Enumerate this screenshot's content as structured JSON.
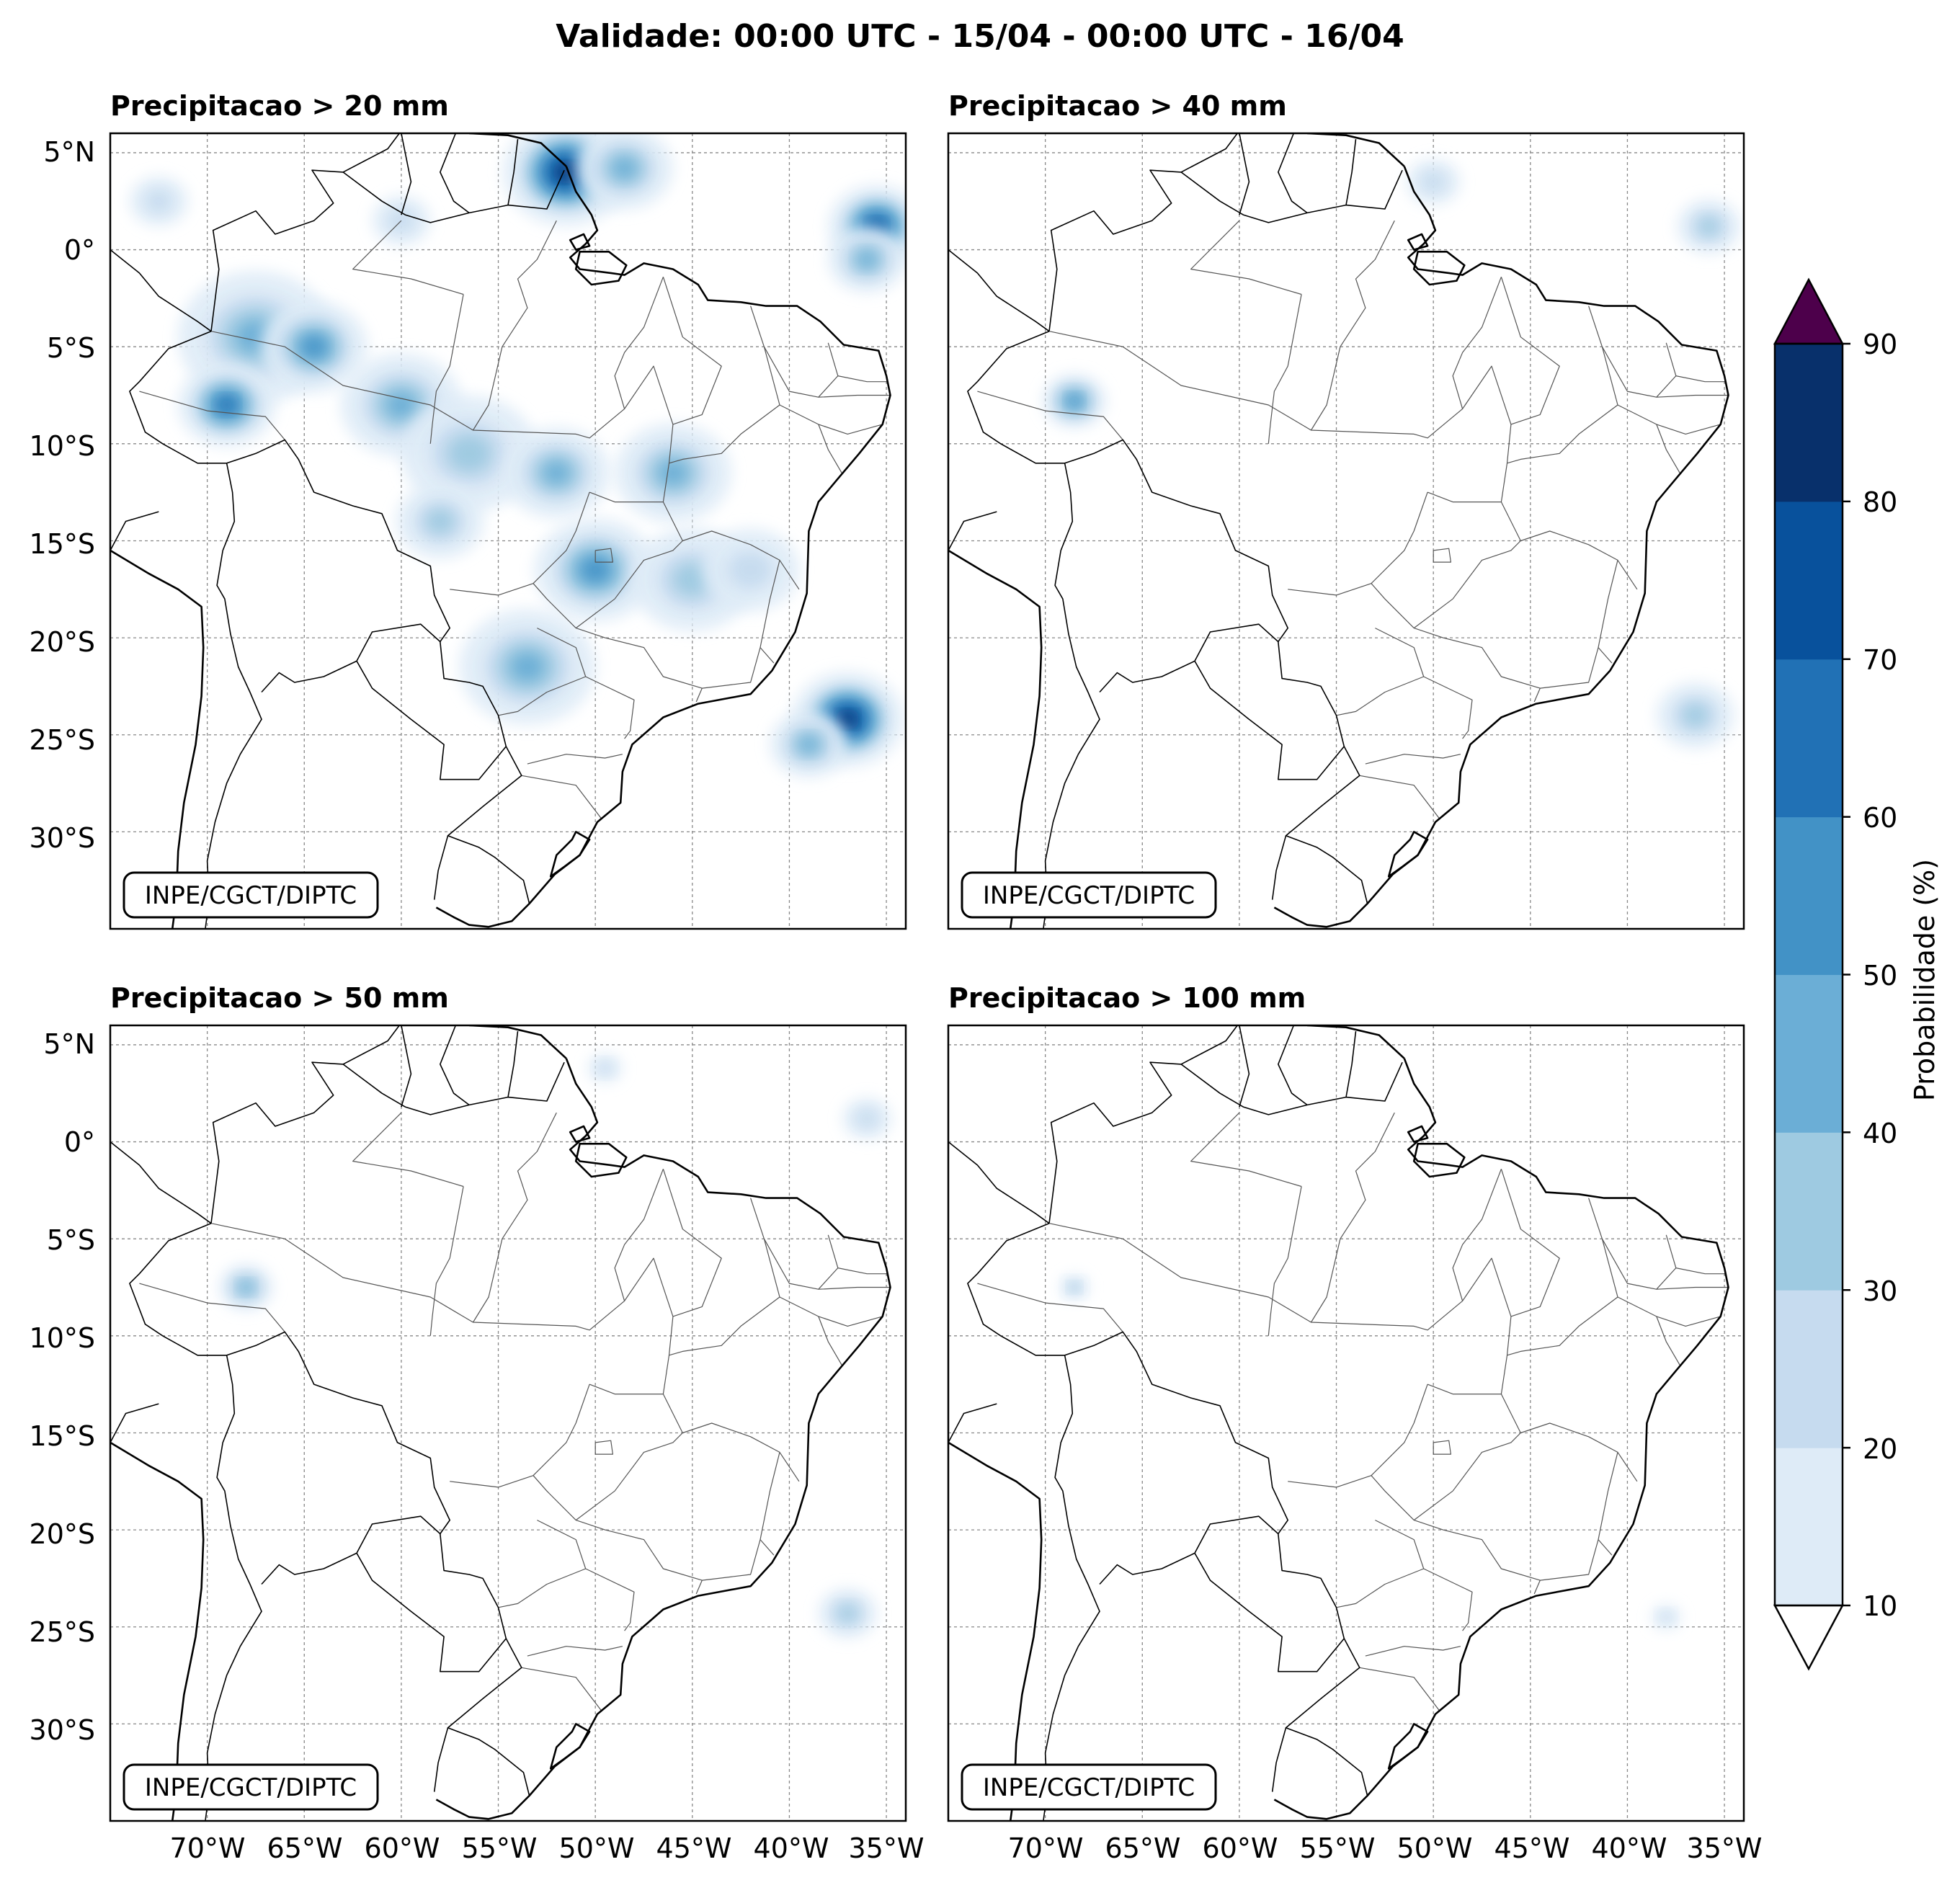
{
  "figure": {
    "title": "Validade: 00:00 UTC - 15/04 - 00:00 UTC - 16/04",
    "credit": "INPE/CGCT/DIPTC"
  },
  "colorbar": {
    "label": "Probabilidade (%)",
    "ticks": [
      "10",
      "20",
      "30",
      "40",
      "50",
      "60",
      "70",
      "80",
      "90"
    ],
    "colors": [
      "#deebf7",
      "#c6dbef",
      "#9ecae1",
      "#6baed6",
      "#4292c6",
      "#2171b5",
      "#08519c",
      "#08306b"
    ],
    "over_color": "#4d004b",
    "under_color": "#ffffff"
  },
  "axes": {
    "lon_labels": [
      "70°W",
      "65°W",
      "60°W",
      "55°W",
      "50°W",
      "45°W",
      "40°W",
      "35°W"
    ],
    "lat_labels": [
      "5°N",
      "0°",
      "5°S",
      "10°S",
      "15°S",
      "20°S",
      "25°S",
      "30°S"
    ]
  },
  "panels": [
    {
      "title": "Precipitacao > 20 mm",
      "blobs": [
        {
          "lon": -51.5,
          "lat": 4.0,
          "r": 2.6,
          "level": 7
        },
        {
          "lon": -48.5,
          "lat": 4.2,
          "r": 2.0,
          "level": 3
        },
        {
          "lon": -35.5,
          "lat": 1.2,
          "r": 2.0,
          "level": 6
        },
        {
          "lon": -36.0,
          "lat": -0.5,
          "r": 1.6,
          "level": 3
        },
        {
          "lon": -67.5,
          "lat": -4.5,
          "r": 3.2,
          "level": 3
        },
        {
          "lon": -64.5,
          "lat": -5.0,
          "r": 2.2,
          "level": 4
        },
        {
          "lon": -69.0,
          "lat": -8.0,
          "r": 2.0,
          "level": 5
        },
        {
          "lon": -60.0,
          "lat": -8.0,
          "r": 2.5,
          "level": 3
        },
        {
          "lon": -56.5,
          "lat": -10.5,
          "r": 2.8,
          "level": 2
        },
        {
          "lon": -52.0,
          "lat": -11.5,
          "r": 2.2,
          "level": 3
        },
        {
          "lon": -46.0,
          "lat": -11.5,
          "r": 2.4,
          "level": 3
        },
        {
          "lon": -50.0,
          "lat": -16.5,
          "r": 2.5,
          "level": 4
        },
        {
          "lon": -45.0,
          "lat": -17.0,
          "r": 2.5,
          "level": 2
        },
        {
          "lon": -42.0,
          "lat": -16.5,
          "r": 2.0,
          "level": 1
        },
        {
          "lon": -53.5,
          "lat": -21.5,
          "r": 2.8,
          "level": 3
        },
        {
          "lon": -37.0,
          "lat": -24.2,
          "r": 2.3,
          "level": 7
        },
        {
          "lon": -39.0,
          "lat": -25.5,
          "r": 1.6,
          "level": 3
        },
        {
          "lon": -60.0,
          "lat": 1.5,
          "r": 1.2,
          "level": 1
        },
        {
          "lon": -58.0,
          "lat": -14.0,
          "r": 1.8,
          "level": 2
        },
        {
          "lon": -72.5,
          "lat": 2.5,
          "r": 1.2,
          "level": 1
        }
      ]
    },
    {
      "title": "Precipitacao > 40 mm",
      "blobs": [
        {
          "lon": -68.5,
          "lat": -7.8,
          "r": 1.3,
          "level": 4
        },
        {
          "lon": -50.0,
          "lat": 3.5,
          "r": 1.1,
          "level": 1
        },
        {
          "lon": -35.8,
          "lat": 1.2,
          "r": 1.3,
          "level": 2
        },
        {
          "lon": -36.5,
          "lat": -24.0,
          "r": 1.6,
          "level": 2
        }
      ]
    },
    {
      "title": "Precipitacao > 50 mm",
      "blobs": [
        {
          "lon": -68.0,
          "lat": -7.5,
          "r": 1.1,
          "level": 3
        },
        {
          "lon": -36.0,
          "lat": 1.2,
          "r": 1.0,
          "level": 1
        },
        {
          "lon": -37.0,
          "lat": -24.3,
          "r": 1.2,
          "level": 2
        },
        {
          "lon": -49.5,
          "lat": 3.8,
          "r": 0.7,
          "level": 1
        }
      ]
    },
    {
      "title": "Precipitacao > 100 mm",
      "blobs": [
        {
          "lon": -68.5,
          "lat": -7.5,
          "r": 0.6,
          "level": 2
        },
        {
          "lon": -38.0,
          "lat": -24.5,
          "r": 0.6,
          "level": 1
        }
      ]
    }
  ]
}
